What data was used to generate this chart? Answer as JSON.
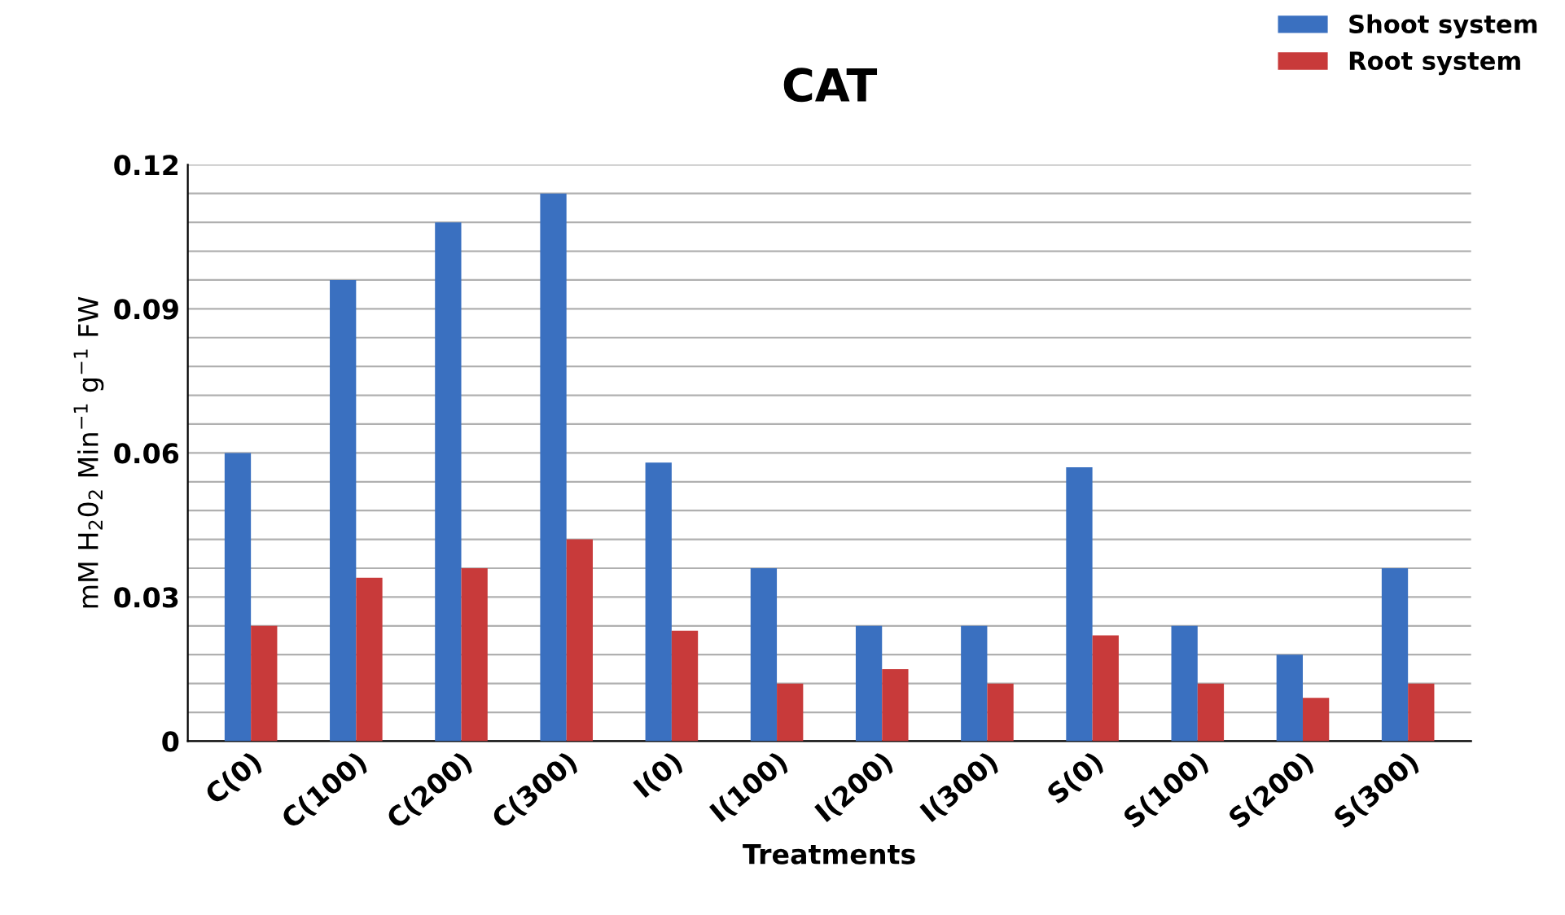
{
  "chart_data": {
    "type": "bar",
    "title": "CAT",
    "xlabel": "Treatments",
    "ylabel": "mM H$_{2}$0$_{2}$ Min$^{−1}$ g$^{−1}$ FW",
    "categories": [
      "C(0)",
      "C(100)",
      "C(200)",
      "C(300)",
      "I(0)",
      "I(100)",
      "I(200)",
      "I(300)",
      "S(0)",
      "S(100)",
      "S(200)",
      "S(300)"
    ],
    "series": [
      {
        "name": "Shoot system",
        "color": "#3a70c0",
        "values": [
          0.06,
          0.096,
          0.108,
          0.114,
          0.058,
          0.036,
          0.024,
          0.024,
          0.057,
          0.024,
          0.018,
          0.036
        ]
      },
      {
        "name": "Root system",
        "color": "#c83a3a",
        "values": [
          0.024,
          0.034,
          0.036,
          0.042,
          0.023,
          0.012,
          0.015,
          0.012,
          0.022,
          0.012,
          0.009,
          0.012
        ]
      }
    ],
    "ylim": [
      0,
      0.12
    ],
    "yticks": [
      0,
      {
        "value": 0.006,
        "label": null
      },
      {
        "value": 0.012,
        "label": null
      },
      {
        "value": 0.018,
        "label": null
      },
      {
        "value": 0.024,
        "label": null
      },
      0.03,
      {
        "value": 0.036,
        "label": null
      },
      {
        "value": 0.042,
        "label": null
      },
      {
        "value": 0.048,
        "label": null
      },
      {
        "value": 0.054,
        "label": null
      },
      0.06,
      {
        "value": 0.066,
        "label": null
      },
      {
        "value": 0.072,
        "label": null
      },
      {
        "value": 0.078,
        "label": null
      },
      {
        "value": 0.084,
        "label": null
      },
      0.09,
      {
        "value": 0.096,
        "label": null
      },
      {
        "value": 0.102,
        "label": null
      },
      {
        "value": 0.108,
        "label": null
      },
      {
        "value": 0.114,
        "label": null
      },
      0.12
    ],
    "grid": "y",
    "legend": "top right"
  }
}
